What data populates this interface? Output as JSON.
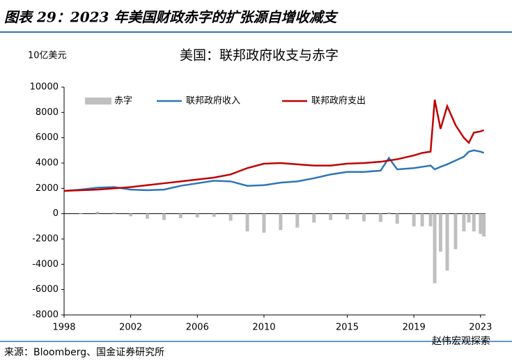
{
  "header": "图表 29：2023 年美国财政赤字的扩张源自增收减支",
  "chart_data": {
    "type": "line",
    "title": "美国：联邦政府收支与赤字",
    "y_label": "10亿美元",
    "x": [
      1998,
      1999,
      2000,
      2001,
      2002,
      2003,
      2004,
      2005,
      2006,
      2007,
      2008,
      2009,
      2010,
      2011,
      2012,
      2013,
      2014,
      2015,
      2016,
      2017,
      2017.5,
      2018,
      2019,
      2019.5,
      2020.0,
      2020.25,
      2020.6,
      2021.0,
      2021.5,
      2022.0,
      2022.3,
      2022.6,
      2023.0,
      2023.2
    ],
    "series": [
      {
        "name": "赤字",
        "type": "bar",
        "color": "#bfbfbf",
        "values": [
          0,
          50,
          150,
          100,
          -200,
          -400,
          -500,
          -350,
          -300,
          -250,
          -550,
          -1400,
          -1500,
          -1300,
          -1100,
          -700,
          -500,
          -450,
          -600,
          -650,
          100,
          -800,
          -1000,
          -1000,
          -1000,
          -5500,
          -3000,
          -4500,
          -2800,
          -1400,
          -700,
          -1400,
          -1600,
          -1800
        ]
      },
      {
        "name": "联邦政府收入",
        "type": "line",
        "color": "#2e75b6",
        "values": [
          1800,
          1900,
          2050,
          2100,
          1900,
          1850,
          1900,
          2200,
          2400,
          2600,
          2550,
          2200,
          2250,
          2450,
          2550,
          2800,
          3100,
          3300,
          3300,
          3400,
          4400,
          3500,
          3600,
          3700,
          3800,
          3500,
          3700,
          3900,
          4200,
          4500,
          4900,
          5000,
          4900,
          4800
        ]
      },
      {
        "name": "联邦政府支出",
        "type": "line",
        "color": "#c00000",
        "values": [
          1800,
          1850,
          1900,
          2000,
          2100,
          2250,
          2400,
          2550,
          2700,
          2850,
          3100,
          3600,
          3950,
          4000,
          3900,
          3800,
          3800,
          3950,
          4000,
          4100,
          4200,
          4300,
          4600,
          4800,
          4900,
          9000,
          6700,
          8500,
          7000,
          6000,
          5600,
          6400,
          6500,
          6600
        ]
      }
    ],
    "xlim": [
      1998,
      2023.3
    ],
    "xticks": [
      1998,
      2002,
      2006,
      2010,
      2015,
      2019,
      2023
    ],
    "ylim": [
      -8000,
      10000
    ],
    "yticks": [
      -8000,
      -6000,
      -4000,
      -2000,
      0,
      2000,
      4000,
      6000,
      8000,
      10000
    ]
  },
  "source": "来源：Bloomberg、国金证券研究所",
  "watermark": "赵伟宏观探索"
}
